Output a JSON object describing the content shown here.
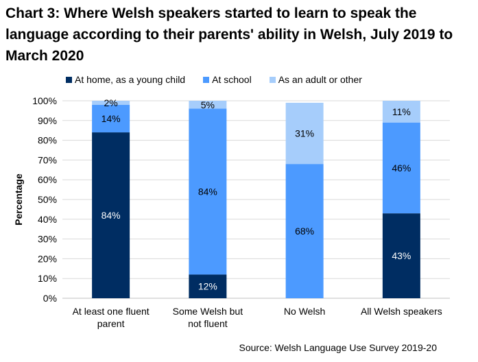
{
  "chart_data": {
    "type": "bar",
    "stacked": true,
    "title": "Chart 3: Where Welsh speakers started to learn to speak the language according to their parents' ability in Welsh, July 2019 to March 2020",
    "ylabel": "Percentage",
    "xlabel": "",
    "ylim": [
      0,
      100
    ],
    "yticks": [
      "0%",
      "10%",
      "20%",
      "30%",
      "40%",
      "50%",
      "60%",
      "70%",
      "80%",
      "90%",
      "100%"
    ],
    "categories": [
      [
        "At least one fluent",
        "parent"
      ],
      [
        "Some Welsh but",
        "not fluent"
      ],
      [
        "No Welsh"
      ],
      [
        "All Welsh speakers"
      ]
    ],
    "series": [
      {
        "name": "At home, as a young child",
        "color": "#002d62",
        "label_color": "#ffffff",
        "values": [
          84,
          12,
          0,
          43
        ],
        "labels": [
          "84%",
          "12%",
          "",
          "43%"
        ]
      },
      {
        "name": "At school",
        "color": "#4c9aff",
        "label_color": "#000000",
        "values": [
          14,
          84,
          68,
          46
        ],
        "labels": [
          "14%",
          "84%",
          "68%",
          "46%"
        ]
      },
      {
        "name": "As an adult or other",
        "color": "#a6cdfb",
        "label_color": "#000000",
        "values": [
          2,
          5,
          31,
          11
        ],
        "labels": [
          "2%",
          "5%",
          "31%",
          "11%"
        ]
      }
    ],
    "grid": true,
    "legend": "top",
    "source": "Source: Welsh Language Use Survey 2019-20"
  }
}
